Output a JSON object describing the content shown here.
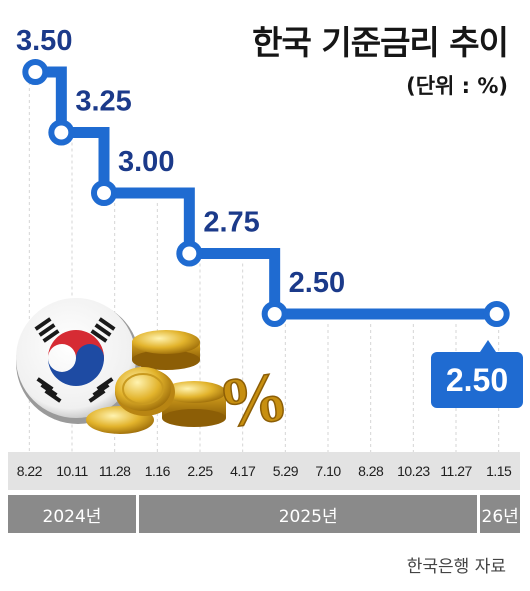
{
  "title": "한국 기준금리 추이",
  "unit": "(단위 : %)",
  "source": "한국은행 자료",
  "colors": {
    "line": "#1f6bd1",
    "label": "#1b3a8a",
    "badge": "#1f6bd1",
    "date_bar": "#e3e3e3",
    "year_bar": "#8a8a8a"
  },
  "chart_data": {
    "type": "line",
    "step": true,
    "x": [
      "8.22",
      "10.11",
      "11.28",
      "1.16",
      "2.25",
      "4.17",
      "5.29",
      "7.10",
      "8.28",
      "10.23",
      "11.27",
      "1.15"
    ],
    "values": [
      3.5,
      3.25,
      3.0,
      3.0,
      2.75,
      2.75,
      2.5,
      2.5,
      2.5,
      2.5,
      2.5,
      2.5
    ],
    "point_labels": [
      {
        "index": 0,
        "text": "3.50"
      },
      {
        "index": 1,
        "text": "3.25"
      },
      {
        "index": 2,
        "text": "3.00"
      },
      {
        "index": 4,
        "text": "2.75"
      },
      {
        "index": 6,
        "text": "2.50"
      }
    ],
    "final_label": "2.50",
    "years": [
      {
        "label": "2024년",
        "from": 0,
        "to": 2
      },
      {
        "label": "2025년",
        "from": 3,
        "to": 10
      },
      {
        "label": "26년",
        "from": 11,
        "to": 11
      }
    ],
    "grid": true,
    "ylim": [
      2.25,
      3.75
    ]
  },
  "decoration": {
    "flag": "taegukgi-icon",
    "coins": "gold-coins-icon",
    "percent": "percent-sign-icon"
  }
}
